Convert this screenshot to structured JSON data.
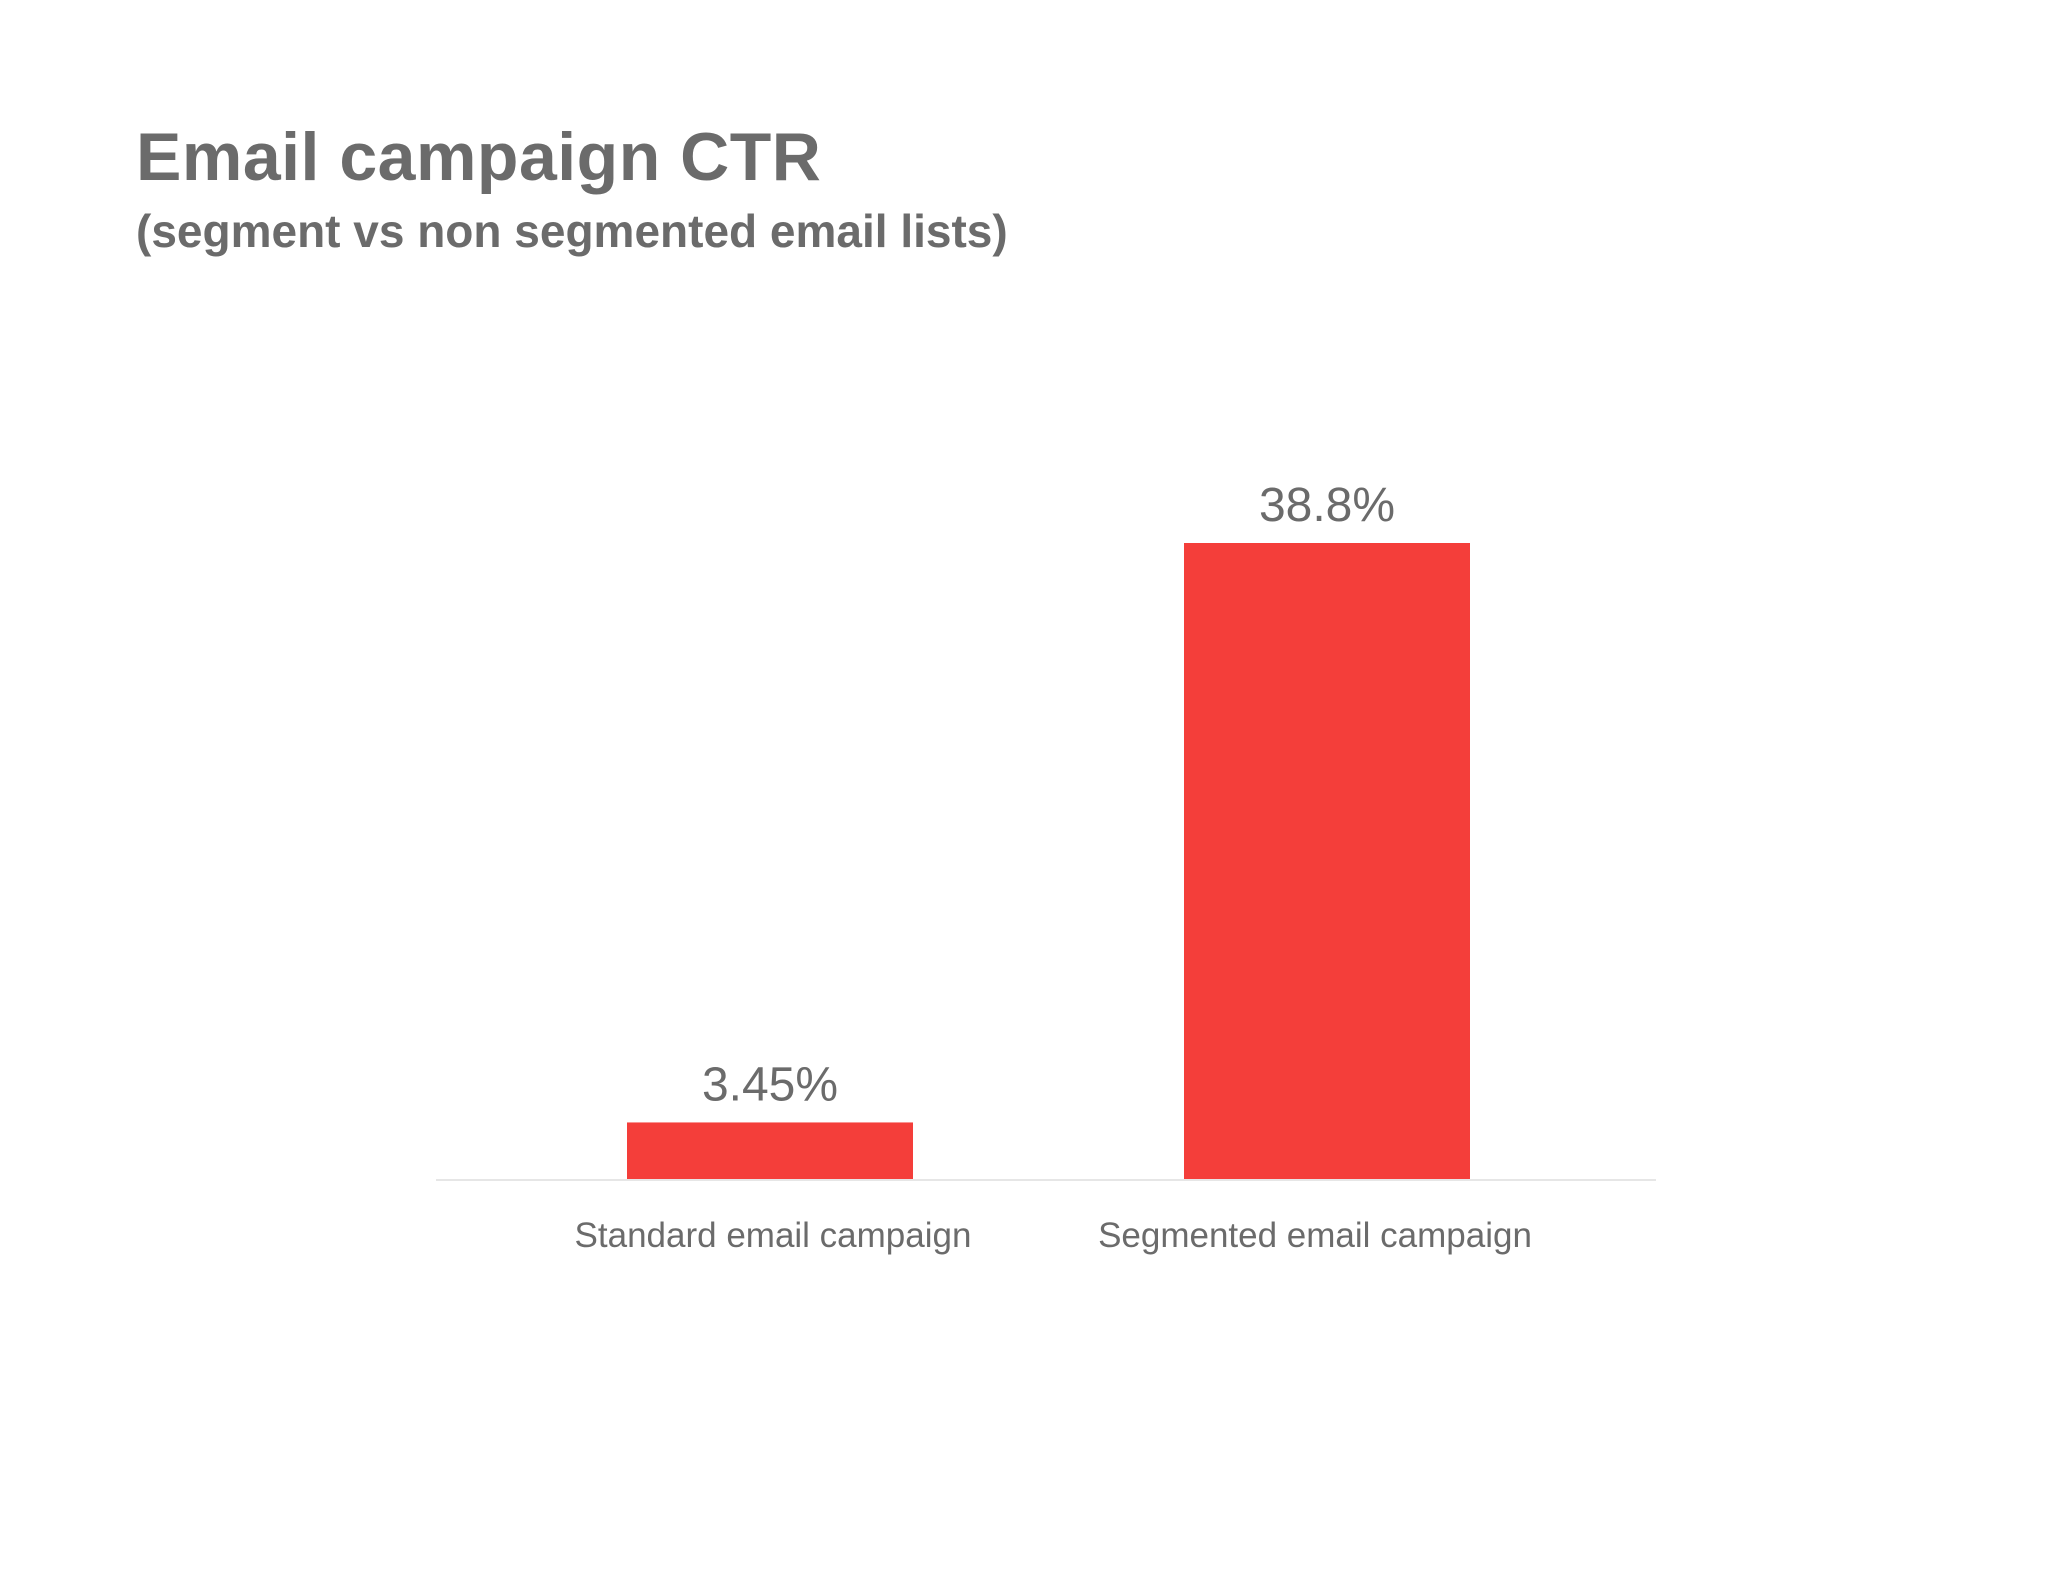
{
  "chart_data": {
    "type": "bar",
    "title": "Email campaign CTR",
    "subtitle": "(segment vs non segmented email lists)",
    "xlabel": "",
    "ylabel": "",
    "categories": [
      "Standard email campaign",
      "Segmented email campaign"
    ],
    "values": [
      3.45,
      38.8
    ],
    "value_labels": [
      "3.45%",
      "38.8%"
    ],
    "ylim": [
      0,
      38.8
    ],
    "grid": false,
    "legend": "none",
    "bar_color": "#f43e3a",
    "baseline_color": "#e6e6e6",
    "text_color": "#6b6b6b"
  }
}
